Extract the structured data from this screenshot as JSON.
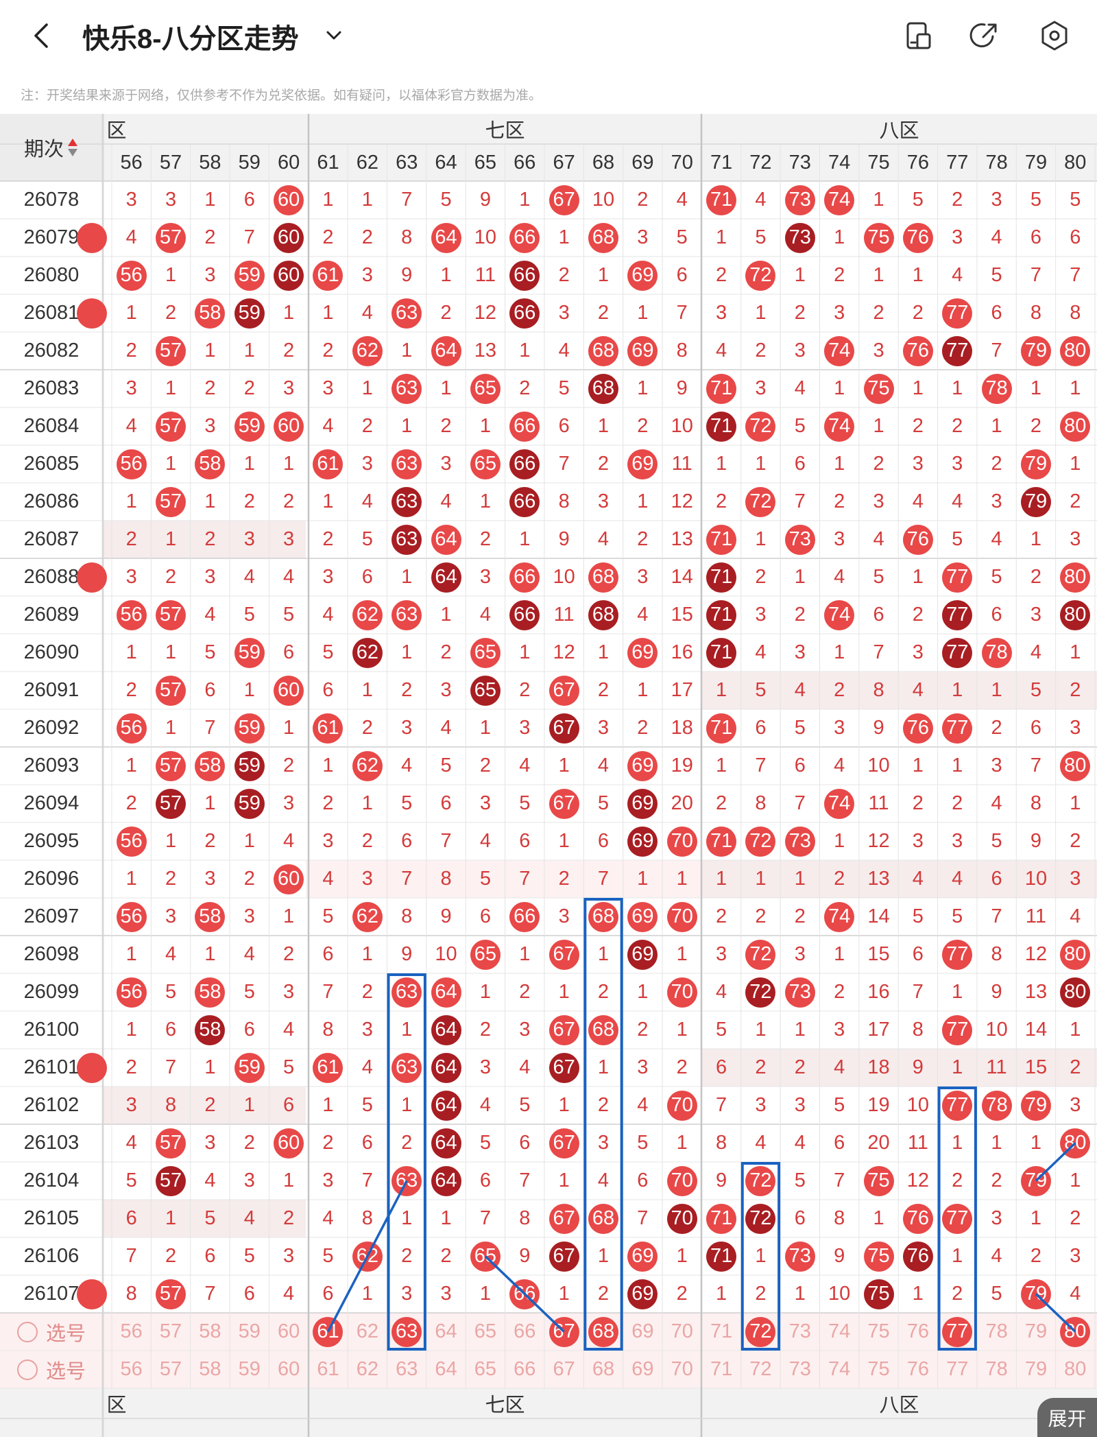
{
  "header": {
    "title": "快乐8-八分区走势",
    "back_icon": "chevron-left-icon",
    "dropdown_icon": "chevron-down-icon",
    "icons": [
      "phone-layout-icon",
      "share-icon",
      "settings-icon"
    ]
  },
  "note": "注：开奖结果来源于网络，仅供参考不作为兑奖依据。如有疑问，以福体彩官方数据为准。",
  "table": {
    "period_header": "期次",
    "sort_up_icon": "sort-up-icon",
    "sort_down_icon": "sort-down-icon",
    "zones": [
      {
        "label": "六区",
        "visible_label": "区"
      },
      {
        "label": "七区"
      },
      {
        "label": "八区"
      }
    ],
    "columns": [
      "56",
      "57",
      "58",
      "59",
      "60",
      "61",
      "62",
      "63",
      "64",
      "65",
      "66",
      "67",
      "68",
      "69",
      "70",
      "71",
      "72",
      "73",
      "74",
      "75",
      "76",
      "77",
      "78",
      "79",
      "80"
    ],
    "rows": [
      {
        "period": "26078",
        "cells": [
          "3",
          "3",
          "1",
          "6",
          "60",
          "1",
          "1",
          "7",
          "5",
          "9",
          "1",
          "67",
          "10",
          "2",
          "4",
          "71",
          "4",
          "73",
          "74",
          "1",
          "5",
          "2",
          "3",
          "5",
          "5"
        ]
      },
      {
        "period": "26079",
        "cells": [
          "4",
          "57",
          "2",
          "7",
          "60",
          "2",
          "2",
          "8",
          "64",
          "10",
          "66",
          "1",
          "68",
          "3",
          "5",
          "1",
          "5",
          "73",
          "1",
          "75",
          "76",
          "3",
          "4",
          "6",
          "6"
        ]
      },
      {
        "period": "26080",
        "cells": [
          "56",
          "1",
          "3",
          "59",
          "60",
          "61",
          "3",
          "9",
          "1",
          "11",
          "66",
          "2",
          "1",
          "69",
          "6",
          "2",
          "72",
          "1",
          "2",
          "1",
          "1",
          "4",
          "5",
          "7",
          "7"
        ]
      },
      {
        "period": "26081",
        "cells": [
          "1",
          "2",
          "58",
          "59",
          "1",
          "1",
          "4",
          "63",
          "2",
          "12",
          "66",
          "3",
          "2",
          "1",
          "7",
          "3",
          "1",
          "2",
          "3",
          "2",
          "2",
          "77",
          "6",
          "8",
          "8"
        ]
      },
      {
        "period": "26082",
        "cells": [
          "2",
          "57",
          "1",
          "1",
          "2",
          "2",
          "62",
          "1",
          "64",
          "13",
          "1",
          "4",
          "68",
          "69",
          "8",
          "4",
          "2",
          "3",
          "74",
          "3",
          "76",
          "77",
          "7",
          "79",
          "80"
        ]
      },
      {
        "period": "26083",
        "cells": [
          "3",
          "1",
          "2",
          "2",
          "3",
          "3",
          "1",
          "63",
          "1",
          "65",
          "2",
          "5",
          "68",
          "1",
          "9",
          "71",
          "3",
          "4",
          "1",
          "75",
          "1",
          "1",
          "78",
          "1",
          "1"
        ]
      },
      {
        "period": "26084",
        "cells": [
          "4",
          "57",
          "3",
          "59",
          "60",
          "4",
          "2",
          "1",
          "2",
          "1",
          "66",
          "6",
          "1",
          "2",
          "10",
          "71",
          "72",
          "5",
          "74",
          "1",
          "2",
          "2",
          "1",
          "2",
          "80"
        ]
      },
      {
        "period": "26085",
        "cells": [
          "56",
          "1",
          "58",
          "1",
          "1",
          "61",
          "3",
          "63",
          "3",
          "65",
          "66",
          "7",
          "2",
          "69",
          "11",
          "1",
          "1",
          "6",
          "1",
          "2",
          "3",
          "3",
          "2",
          "79",
          "1"
        ]
      },
      {
        "period": "26086",
        "cells": [
          "1",
          "57",
          "1",
          "2",
          "2",
          "1",
          "4",
          "63",
          "4",
          "1",
          "66",
          "8",
          "3",
          "1",
          "12",
          "2",
          "72",
          "7",
          "2",
          "3",
          "4",
          "4",
          "3",
          "79",
          "2"
        ]
      },
      {
        "period": "26087",
        "cells": [
          "2",
          "1",
          "2",
          "3",
          "3",
          "2",
          "5",
          "63",
          "64",
          "2",
          "1",
          "9",
          "4",
          "2",
          "13",
          "71",
          "1",
          "73",
          "3",
          "4",
          "76",
          "5",
          "4",
          "1",
          "3"
        ]
      },
      {
        "period": "26088",
        "cells": [
          "3",
          "2",
          "3",
          "4",
          "4",
          "3",
          "6",
          "1",
          "64",
          "3",
          "66",
          "10",
          "68",
          "3",
          "14",
          "71",
          "2",
          "1",
          "4",
          "5",
          "1",
          "77",
          "5",
          "2",
          "80"
        ]
      },
      {
        "period": "26089",
        "cells": [
          "56",
          "57",
          "4",
          "5",
          "5",
          "4",
          "62",
          "63",
          "1",
          "4",
          "66",
          "11",
          "68",
          "4",
          "15",
          "71",
          "3",
          "2",
          "74",
          "6",
          "2",
          "77",
          "6",
          "3",
          "80"
        ]
      },
      {
        "period": "26090",
        "cells": [
          "1",
          "1",
          "5",
          "59",
          "6",
          "5",
          "62",
          "1",
          "2",
          "65",
          "1",
          "12",
          "1",
          "69",
          "16",
          "71",
          "4",
          "3",
          "1",
          "7",
          "3",
          "77",
          "78",
          "4",
          "1"
        ]
      },
      {
        "period": "26091",
        "cells": [
          "2",
          "57",
          "6",
          "1",
          "60",
          "6",
          "1",
          "2",
          "3",
          "65",
          "2",
          "67",
          "2",
          "1",
          "17",
          "1",
          "5",
          "4",
          "2",
          "8",
          "4",
          "1",
          "1",
          "5",
          "2"
        ]
      },
      {
        "period": "26092",
        "cells": [
          "56",
          "1",
          "7",
          "59",
          "1",
          "61",
          "2",
          "3",
          "4",
          "1",
          "3",
          "67",
          "3",
          "2",
          "18",
          "71",
          "6",
          "5",
          "3",
          "9",
          "76",
          "77",
          "2",
          "6",
          "3"
        ]
      },
      {
        "period": "26093",
        "cells": [
          "1",
          "57",
          "58",
          "59",
          "2",
          "1",
          "62",
          "4",
          "5",
          "2",
          "4",
          "1",
          "4",
          "69",
          "19",
          "1",
          "7",
          "6",
          "4",
          "10",
          "1",
          "1",
          "3",
          "7",
          "80"
        ]
      },
      {
        "period": "26094",
        "cells": [
          "2",
          "57",
          "1",
          "59",
          "3",
          "2",
          "1",
          "5",
          "6",
          "3",
          "5",
          "67",
          "5",
          "69",
          "20",
          "2",
          "8",
          "7",
          "74",
          "11",
          "2",
          "2",
          "4",
          "8",
          "1"
        ]
      },
      {
        "period": "26095",
        "cells": [
          "56",
          "1",
          "2",
          "1",
          "4",
          "3",
          "2",
          "6",
          "7",
          "4",
          "6",
          "1",
          "6",
          "69",
          "70",
          "71",
          "72",
          "73",
          "1",
          "12",
          "3",
          "3",
          "5",
          "9",
          "2"
        ]
      },
      {
        "period": "26096",
        "cells": [
          "1",
          "2",
          "3",
          "2",
          "60",
          "4",
          "3",
          "7",
          "8",
          "5",
          "7",
          "2",
          "7",
          "1",
          "1",
          "1",
          "1",
          "1",
          "2",
          "13",
          "4",
          "4",
          "6",
          "10",
          "3"
        ]
      },
      {
        "period": "26097",
        "cells": [
          "56",
          "3",
          "58",
          "3",
          "1",
          "5",
          "62",
          "8",
          "9",
          "6",
          "66",
          "3",
          "68",
          "69",
          "70",
          "2",
          "2",
          "2",
          "74",
          "14",
          "5",
          "5",
          "7",
          "11",
          "4"
        ]
      },
      {
        "period": "26098",
        "cells": [
          "1",
          "4",
          "1",
          "4",
          "2",
          "6",
          "1",
          "9",
          "10",
          "65",
          "1",
          "67",
          "1",
          "69",
          "1",
          "3",
          "72",
          "3",
          "1",
          "15",
          "6",
          "77",
          "8",
          "12",
          "80"
        ]
      },
      {
        "period": "26099",
        "cells": [
          "56",
          "5",
          "58",
          "5",
          "3",
          "7",
          "2",
          "63",
          "64",
          "1",
          "2",
          "1",
          "2",
          "1",
          "70",
          "4",
          "72",
          "73",
          "2",
          "16",
          "7",
          "1",
          "9",
          "13",
          "80"
        ]
      },
      {
        "period": "26100",
        "cells": [
          "1",
          "6",
          "58",
          "6",
          "4",
          "8",
          "3",
          "1",
          "64",
          "2",
          "3",
          "67",
          "68",
          "2",
          "1",
          "5",
          "1",
          "1",
          "3",
          "17",
          "8",
          "77",
          "10",
          "14",
          "1"
        ]
      },
      {
        "period": "26101",
        "cells": [
          "2",
          "7",
          "1",
          "59",
          "5",
          "61",
          "4",
          "63",
          "64",
          "3",
          "4",
          "67",
          "1",
          "3",
          "2",
          "6",
          "2",
          "2",
          "4",
          "18",
          "9",
          "1",
          "11",
          "15",
          "2"
        ]
      },
      {
        "period": "26102",
        "cells": [
          "3",
          "8",
          "2",
          "1",
          "6",
          "1",
          "5",
          "1",
          "64",
          "4",
          "5",
          "1",
          "2",
          "4",
          "70",
          "7",
          "3",
          "3",
          "5",
          "19",
          "10",
          "77",
          "78",
          "79",
          "3"
        ]
      },
      {
        "period": "26103",
        "cells": [
          "4",
          "57",
          "3",
          "2",
          "60",
          "2",
          "6",
          "2",
          "64",
          "5",
          "6",
          "67",
          "3",
          "5",
          "1",
          "8",
          "4",
          "4",
          "6",
          "20",
          "11",
          "1",
          "1",
          "1",
          "80"
        ]
      },
      {
        "period": "26104",
        "cells": [
          "5",
          "57",
          "4",
          "3",
          "1",
          "3",
          "7",
          "63",
          "64",
          "6",
          "7",
          "1",
          "4",
          "6",
          "70",
          "9",
          "72",
          "5",
          "7",
          "75",
          "12",
          "2",
          "2",
          "79",
          "1"
        ]
      },
      {
        "period": "26105",
        "cells": [
          "6",
          "1",
          "5",
          "4",
          "2",
          "4",
          "8",
          "1",
          "1",
          "7",
          "8",
          "67",
          "68",
          "7",
          "70",
          "71",
          "72",
          "6",
          "8",
          "1",
          "76",
          "77",
          "3",
          "1",
          "2"
        ]
      },
      {
        "period": "26106",
        "cells": [
          "7",
          "2",
          "6",
          "5",
          "3",
          "5",
          "62",
          "2",
          "2",
          "65",
          "9",
          "67",
          "1",
          "69",
          "1",
          "71",
          "1",
          "73",
          "9",
          "75",
          "76",
          "1",
          "4",
          "2",
          "3"
        ]
      },
      {
        "period": "26107",
        "cells": [
          "8",
          "57",
          "7",
          "6",
          "4",
          "6",
          "1",
          "3",
          "3",
          "1",
          "66",
          "1",
          "2",
          "69",
          "2",
          "1",
          "2",
          "1",
          "10",
          "75",
          "1",
          "2",
          "5",
          "79",
          "4"
        ]
      }
    ],
    "select_label": "选号",
    "selected_numbers": [
      "61",
      "63",
      "67",
      "68",
      "72",
      "77",
      "80"
    ],
    "expand_label": "展开"
  },
  "colors": {
    "ball_hot": "#e84848",
    "ball_dark": "#a81e22",
    "number_text": "#d43a3a",
    "frame_blue": "#1a62c0"
  }
}
